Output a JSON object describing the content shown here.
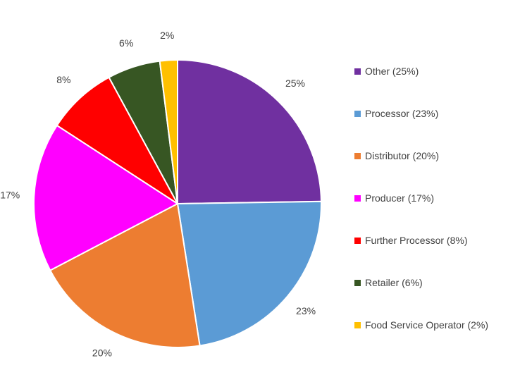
{
  "chart_data": {
    "type": "pie",
    "categories": [
      "Other",
      "Processor",
      "Distributor",
      "Producer",
      "Further Processor",
      "Retailer",
      "Food Service Operator"
    ],
    "values": [
      25,
      23,
      20,
      17,
      8,
      6,
      2
    ],
    "unit": "%",
    "data_labels": [
      "25%",
      "23%",
      "20%",
      "17%",
      "8%",
      "6%",
      "2%"
    ],
    "legend_labels": [
      "Other (25%)",
      "Processor (23%)",
      "Distributor (20%)",
      "Producer (17%)",
      "Further Processor (8%)",
      "Retailer (6%)",
      "Food Service Operator (2%)"
    ],
    "colors": [
      "#7030A0",
      "#5B9BD5",
      "#ED7D31",
      "#FF00FF",
      "#FF0000",
      "#375623",
      "#FFC000"
    ],
    "start_angle": "12 o'clock",
    "direction": "clockwise",
    "legend_position": "right"
  }
}
